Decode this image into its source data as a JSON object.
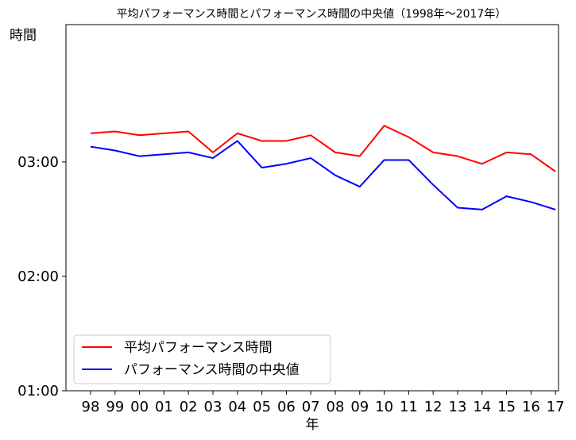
{
  "chart_data": {
    "type": "line",
    "title": "平均パフォーマンス時間とパフォーマンス時間の中央値（1998年〜2017年）",
    "xlabel": "年",
    "ylabel": "時間",
    "categories": [
      "98",
      "99",
      "00",
      "01",
      "02",
      "03",
      "04",
      "05",
      "06",
      "07",
      "08",
      "09",
      "10",
      "11",
      "12",
      "13",
      "14",
      "15",
      "16",
      "17"
    ],
    "y_unit": "minutes",
    "ylim": [
      60,
      252
    ],
    "yticks": [
      {
        "value": 60,
        "label": "01:00"
      },
      {
        "value": 120,
        "label": "02:00"
      },
      {
        "value": 180,
        "label": "03:00"
      }
    ],
    "grid": false,
    "legend_position": "lower-left",
    "series": [
      {
        "name": "平均パフォーマンス時間",
        "color": "#ff0000",
        "values": [
          195,
          196,
          194,
          195,
          196,
          185,
          195,
          191,
          191,
          194,
          185,
          183,
          199,
          193,
          185,
          183,
          179,
          185,
          184,
          175
        ]
      },
      {
        "name": "パフォーマンス時間の中央値",
        "color": "#0000ff",
        "values": [
          188,
          186,
          183,
          184,
          185,
          182,
          191,
          177,
          179,
          182,
          173,
          167,
          181,
          181,
          168,
          156,
          155,
          162,
          159,
          155
        ]
      }
    ]
  }
}
